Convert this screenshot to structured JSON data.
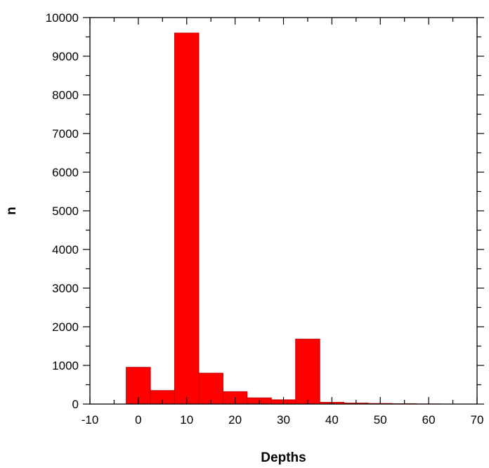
{
  "chart_data": {
    "type": "bar",
    "title": "",
    "xlabel": "Depths",
    "ylabel": "n",
    "xlim": [
      -10,
      70
    ],
    "ylim": [
      0,
      10000
    ],
    "x_ticks": [
      -10,
      0,
      10,
      20,
      30,
      40,
      50,
      60,
      70
    ],
    "y_ticks": [
      0,
      1000,
      2000,
      3000,
      4000,
      5000,
      6000,
      7000,
      8000,
      9000,
      10000
    ],
    "grid": false,
    "legend": "none",
    "bin_width": 5,
    "bins": [
      {
        "x0": -2.5,
        "x1": 2.5,
        "value": 950
      },
      {
        "x0": 2.5,
        "x1": 7.5,
        "value": 350
      },
      {
        "x0": 7.5,
        "x1": 12.5,
        "value": 9600
      },
      {
        "x0": 12.5,
        "x1": 17.5,
        "value": 800
      },
      {
        "x0": 17.5,
        "x1": 22.5,
        "value": 320
      },
      {
        "x0": 22.5,
        "x1": 27.5,
        "value": 160
      },
      {
        "x0": 27.5,
        "x1": 32.5,
        "value": 110
      },
      {
        "x0": 32.5,
        "x1": 37.5,
        "value": 1680
      },
      {
        "x0": 37.5,
        "x1": 42.5,
        "value": 45
      },
      {
        "x0": 42.5,
        "x1": 47.5,
        "value": 25
      },
      {
        "x0": 47.5,
        "x1": 52.5,
        "value": 15
      },
      {
        "x0": 52.5,
        "x1": 57.5,
        "value": 8
      },
      {
        "x0": 57.5,
        "x1": 62.5,
        "value": 3
      }
    ],
    "colors": {
      "bar_fill": "#ff0000",
      "bar_stroke": "#c00000",
      "axis": "#000000"
    }
  }
}
